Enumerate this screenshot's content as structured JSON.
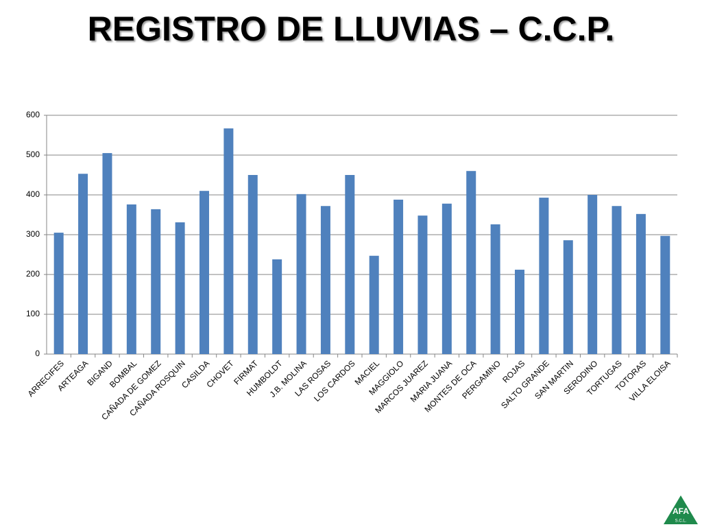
{
  "chart_data": {
    "type": "bar",
    "title": "REGISTRO DE LLUVIAS – C.C.P.",
    "categories": [
      "ARRECIFES",
      "ARTEAGA",
      "BIGAND",
      "BOMBAL",
      "CAÑADA DE GOMEZ",
      "CAÑADA ROSQUIN",
      "CASILDA",
      "CHOVET",
      "FIRMAT",
      "HUMBOLDT",
      "J.B. MOLINA",
      "LAS ROSAS",
      "LOS CARDOS",
      "MACIEL",
      "MAGGIOLO",
      "MARCOS JUAREZ",
      "MARIA JUANA",
      "MONTES DE OCA",
      "PERGAMINO",
      "ROJAS",
      "SALTO GRANDE",
      "SAN MARTIN",
      "SERODINO",
      "TORTUGAS",
      "TOTORAS",
      "VILLA ELOISA"
    ],
    "values": [
      305,
      453,
      505,
      376,
      364,
      331,
      410,
      567,
      450,
      238,
      402,
      372,
      450,
      247,
      388,
      348,
      378,
      460,
      326,
      212,
      393,
      286,
      400,
      372,
      352,
      297
    ],
    "color": "#4f81bd",
    "ylim": [
      0,
      600
    ],
    "yticks": [
      0,
      100,
      200,
      300,
      400,
      500,
      600
    ],
    "grid": true
  },
  "logo": {
    "text": "AFA",
    "sub": "S.C.L."
  }
}
